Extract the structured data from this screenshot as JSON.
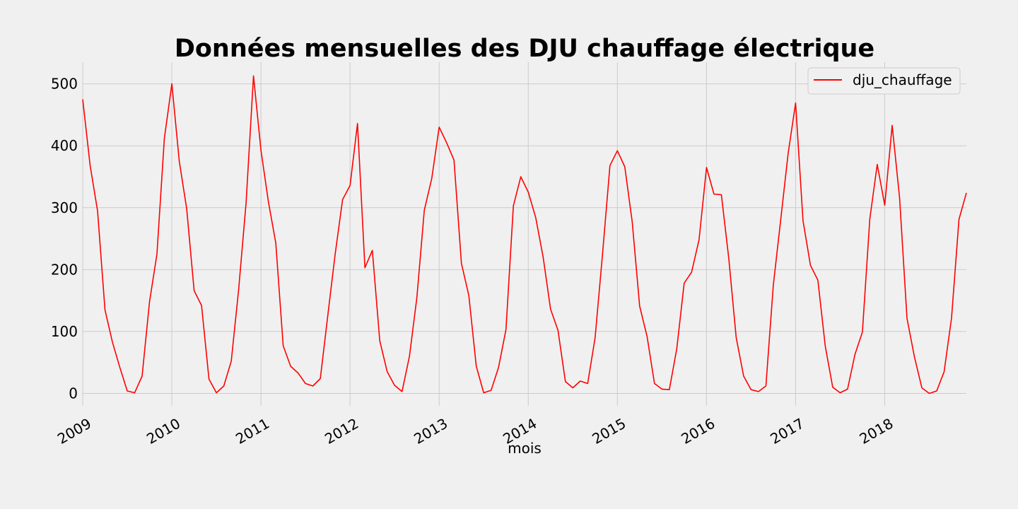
{
  "chart_data": {
    "type": "line",
    "title": "Données mensuelles des DJU chauffage électrique",
    "xlabel": "mois",
    "ylabel": "",
    "x_start": "2009-01",
    "x_end": "2018-12",
    "ylim": [
      -20,
      535
    ],
    "yticks": [
      0,
      100,
      200,
      300,
      400,
      500
    ],
    "xticks": [
      "2009",
      "2010",
      "2011",
      "2012",
      "2013",
      "2014",
      "2015",
      "2016",
      "2017",
      "2018"
    ],
    "grid": true,
    "legend_position": "top-right",
    "series": [
      {
        "name": "dju_chauffage",
        "color": "#ff0000",
        "values": [
          475,
          368,
          295,
          135,
          83,
          42,
          4,
          1,
          28,
          148,
          225,
          412,
          500,
          375,
          298,
          166,
          142,
          23,
          1,
          12,
          52,
          168,
          308,
          513,
          393,
          310,
          243,
          77,
          44,
          33,
          16,
          12,
          24,
          125,
          225,
          313,
          336,
          436,
          203,
          231,
          85,
          35,
          13,
          3,
          60,
          155,
          296,
          347,
          430,
          405,
          377,
          210,
          158,
          44,
          1,
          5,
          42,
          103,
          303,
          350,
          325,
          284,
          220,
          136,
          102,
          19,
          9,
          20,
          16,
          90,
          225,
          368,
          392,
          366,
          277,
          141,
          92,
          16,
          7,
          6,
          72,
          178,
          196,
          248,
          365,
          322,
          321,
          218,
          90,
          28,
          6,
          3,
          12,
          175,
          281,
          388,
          469,
          279,
          207,
          183,
          76,
          10,
          1,
          7,
          63,
          99,
          282,
          370,
          304,
          433,
          316,
          121,
          59,
          9,
          0,
          4,
          35,
          122,
          281,
          324
        ]
      }
    ]
  }
}
